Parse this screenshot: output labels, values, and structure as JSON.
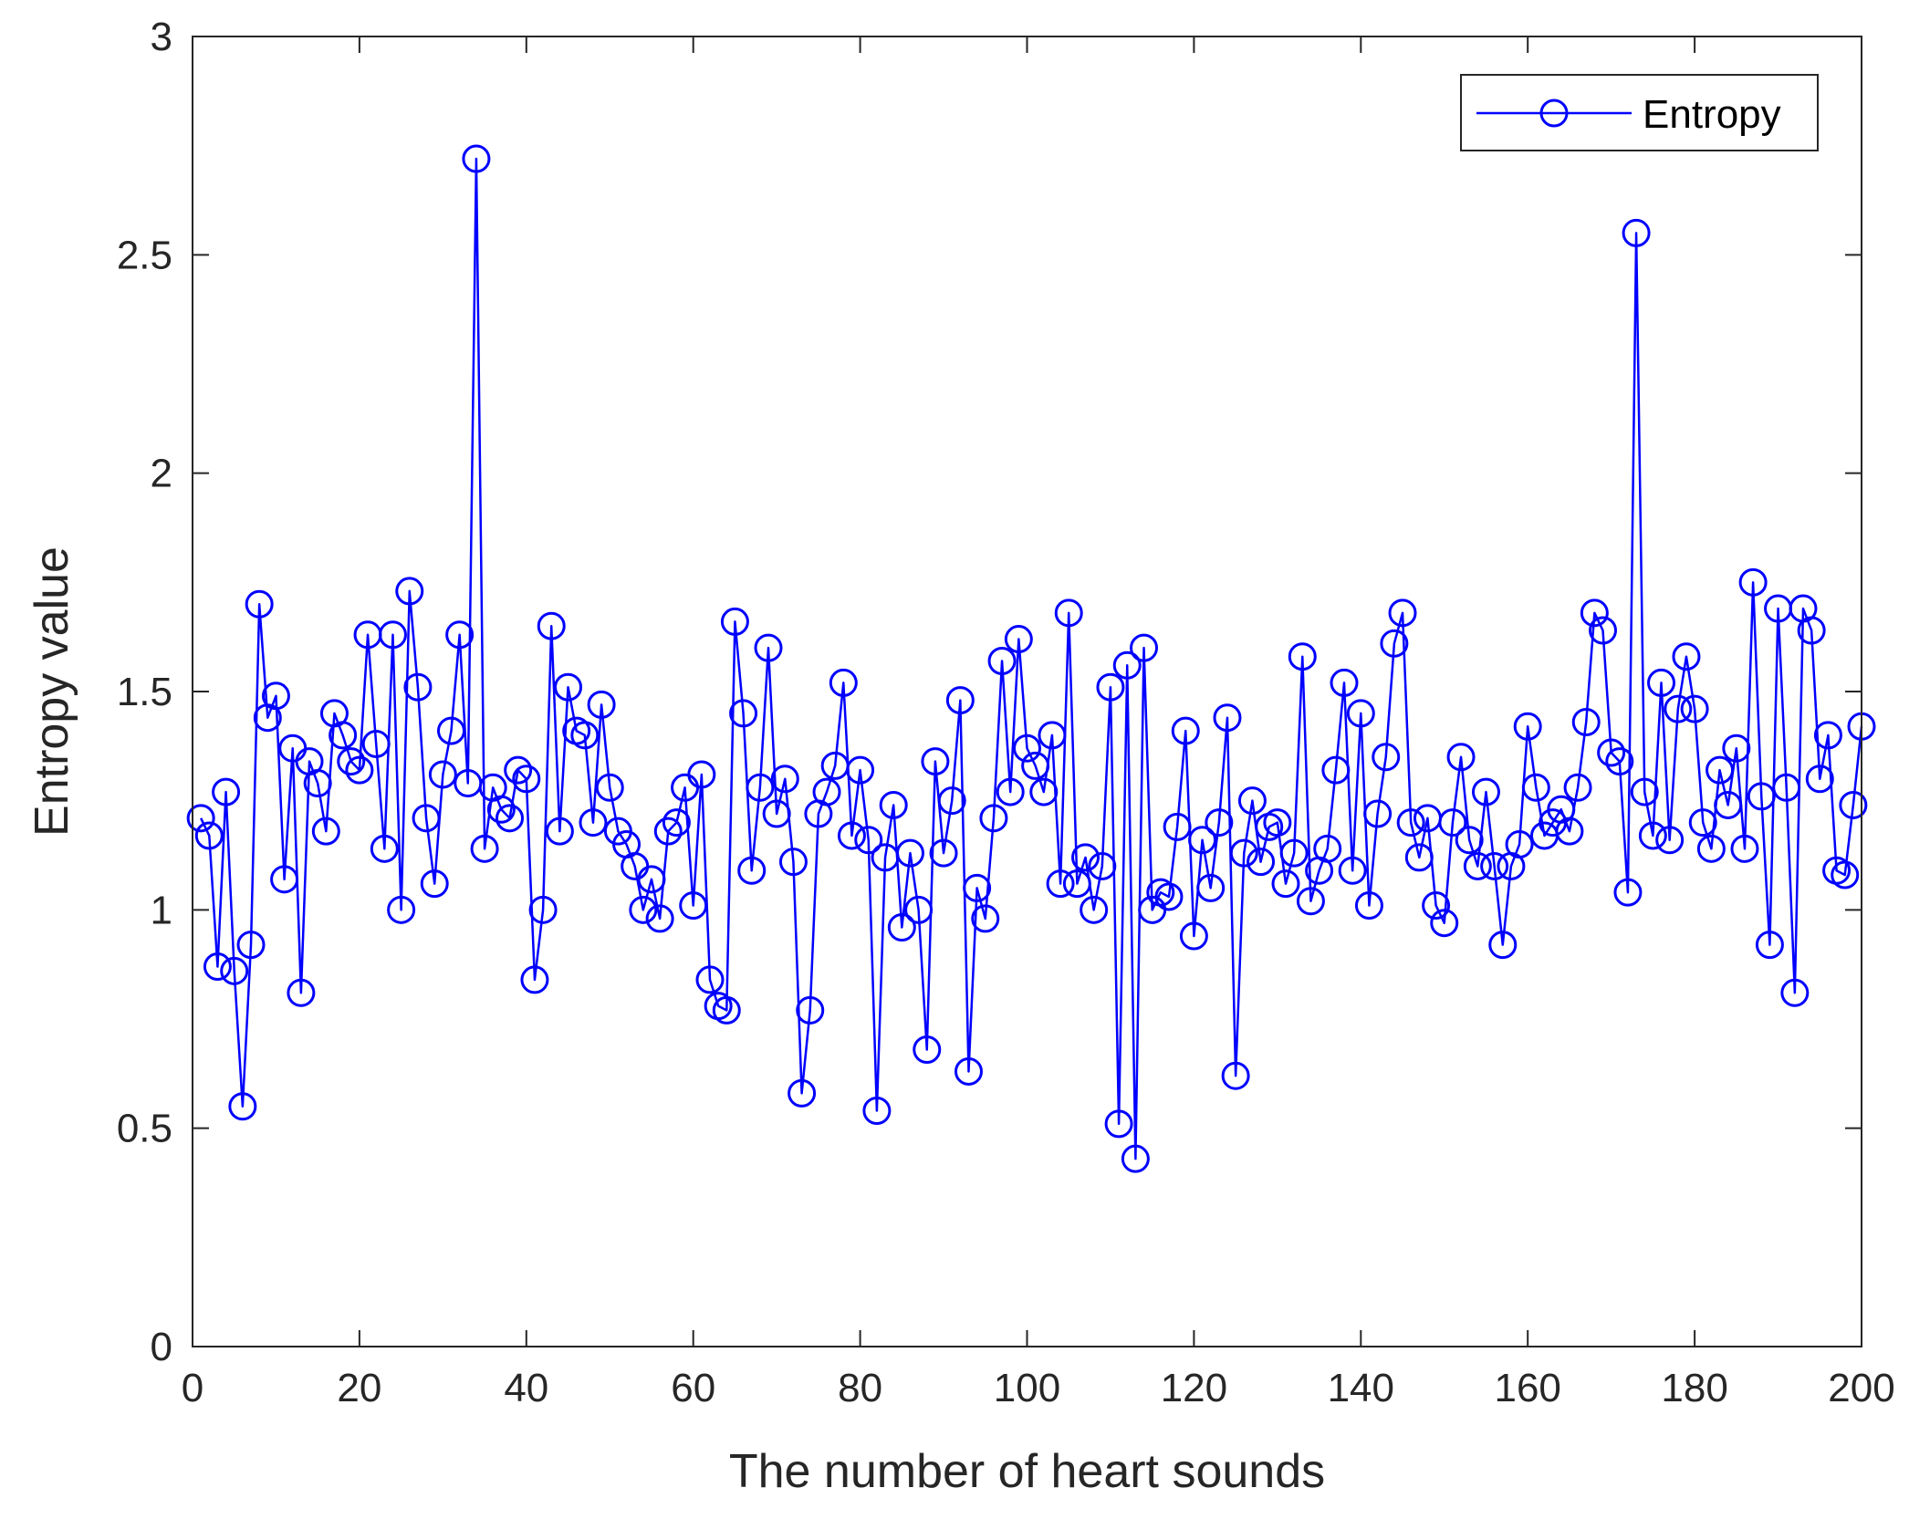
{
  "chart_data": {
    "type": "line",
    "xlabel": "The number of heart sounds",
    "ylabel": "Entropy value",
    "xlim": [
      0,
      200
    ],
    "ylim": [
      0,
      3
    ],
    "xticks": [
      0,
      20,
      40,
      60,
      80,
      100,
      120,
      140,
      160,
      180,
      200
    ],
    "yticks": [
      0,
      0.5,
      1,
      1.5,
      2,
      2.5,
      3
    ],
    "ytick_labels": [
      "0",
      "0.5",
      "1",
      "1.5",
      "2",
      "2.5",
      "3"
    ],
    "grid": false,
    "legend_position": "top-right",
    "series": [
      {
        "name": "Entropy",
        "color": "#0000ff",
        "marker": "circle",
        "x": [
          1,
          2,
          3,
          4,
          5,
          6,
          7,
          8,
          9,
          10,
          11,
          12,
          13,
          14,
          15,
          16,
          17,
          18,
          19,
          20,
          21,
          22,
          23,
          24,
          25,
          26,
          27,
          28,
          29,
          30,
          31,
          32,
          33,
          34,
          35,
          36,
          37,
          38,
          39,
          40,
          41,
          42,
          43,
          44,
          45,
          46,
          47,
          48,
          49,
          50,
          51,
          52,
          53,
          54,
          55,
          56,
          57,
          58,
          59,
          60,
          61,
          62,
          63,
          64,
          65,
          66,
          67,
          68,
          69,
          70,
          71,
          72,
          73,
          74,
          75,
          76,
          77,
          78,
          79,
          80,
          81,
          82,
          83,
          84,
          85,
          86,
          87,
          88,
          89,
          90,
          91,
          92,
          93,
          94,
          95,
          96,
          97,
          98,
          99,
          100,
          101,
          102,
          103,
          104,
          105,
          106,
          107,
          108,
          109,
          110,
          111,
          112,
          113,
          114,
          115,
          116,
          117,
          118,
          119,
          120,
          121,
          122,
          123,
          124,
          125,
          126,
          127,
          128,
          129,
          130,
          131,
          132,
          133,
          134,
          135,
          136,
          137,
          138,
          139,
          140,
          141,
          142,
          143,
          144,
          145,
          146,
          147,
          148,
          149,
          150,
          151,
          152,
          153,
          154,
          155,
          156,
          157,
          158,
          159,
          160,
          161,
          162,
          163,
          164,
          165,
          166,
          167,
          168,
          169,
          170,
          171,
          172,
          173,
          174,
          175,
          176,
          177,
          178,
          179,
          180,
          181,
          182,
          183,
          184,
          185,
          186,
          187,
          188,
          189,
          190,
          191,
          192,
          193,
          194,
          195,
          196,
          197,
          198,
          199,
          200
        ],
        "y": [
          1.21,
          1.17,
          0.87,
          1.27,
          0.86,
          0.55,
          0.92,
          1.7,
          1.44,
          1.49,
          1.07,
          1.37,
          0.81,
          1.34,
          1.29,
          1.18,
          1.45,
          1.4,
          1.34,
          1.32,
          1.63,
          1.38,
          1.14,
          1.63,
          1.0,
          1.73,
          1.51,
          1.21,
          1.06,
          1.31,
          1.41,
          1.63,
          1.29,
          2.72,
          1.14,
          1.28,
          1.23,
          1.21,
          1.32,
          1.3,
          0.84,
          1.0,
          1.65,
          1.18,
          1.51,
          1.41,
          1.4,
          1.2,
          1.47,
          1.28,
          1.18,
          1.15,
          1.1,
          1.0,
          1.07,
          0.98,
          1.18,
          1.2,
          1.28,
          1.01,
          1.31,
          0.84,
          0.78,
          0.77,
          1.66,
          1.45,
          1.09,
          1.28,
          1.6,
          1.22,
          1.3,
          1.11,
          0.58,
          0.77,
          1.22,
          1.27,
          1.33,
          1.52,
          1.17,
          1.32,
          1.16,
          0.54,
          1.12,
          1.24,
          0.96,
          1.13,
          1.0,
          0.68,
          1.34,
          1.13,
          1.25,
          1.48,
          0.63,
          1.05,
          0.98,
          1.21,
          1.57,
          1.27,
          1.62,
          1.37,
          1.33,
          1.27,
          1.4,
          1.06,
          1.68,
          1.06,
          1.12,
          1.0,
          1.1,
          1.51,
          0.51,
          1.56,
          0.43,
          1.6,
          1.0,
          1.04,
          1.03,
          1.19,
          1.41,
          0.94,
          1.16,
          1.05,
          1.2,
          1.44,
          0.62,
          1.13,
          1.25,
          1.11,
          1.19,
          1.2,
          1.06,
          1.13,
          1.58,
          1.02,
          1.09,
          1.14,
          1.32,
          1.52,
          1.09,
          1.45,
          1.01,
          1.22,
          1.35,
          1.61,
          1.68,
          1.2,
          1.12,
          1.21,
          1.01,
          0.97,
          1.2,
          1.35,
          1.16,
          1.1,
          1.27,
          1.1,
          0.92,
          1.1,
          1.15,
          1.42,
          1.28,
          1.17,
          1.2,
          1.23,
          1.18,
          1.28,
          1.43,
          1.68,
          1.64,
          1.36,
          1.34,
          1.04,
          2.55,
          1.27,
          1.17,
          1.52,
          1.16,
          1.46,
          1.58,
          1.46,
          1.2,
          1.14,
          1.32,
          1.24,
          1.37,
          1.14,
          1.75,
          1.26,
          0.92,
          1.69,
          1.28,
          0.81,
          1.69,
          1.64,
          1.3,
          1.4,
          1.09,
          1.08,
          1.24,
          1.42
        ]
      }
    ]
  }
}
